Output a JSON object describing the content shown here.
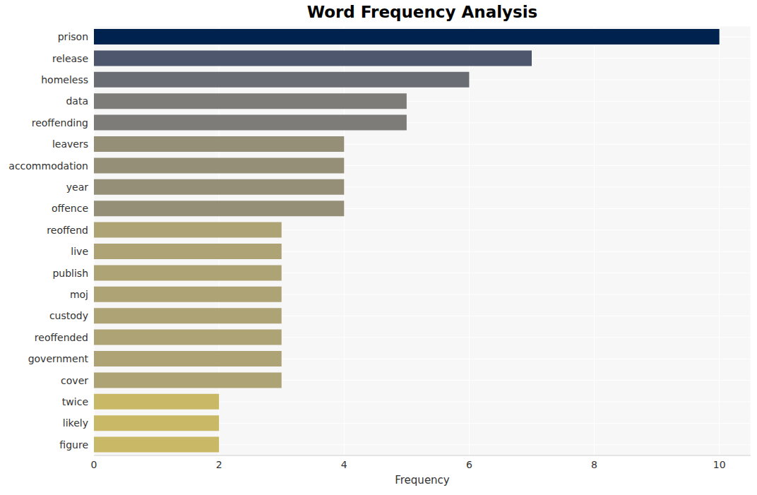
{
  "chart_data": {
    "type": "bar",
    "orientation": "horizontal",
    "title": "Word Frequency Analysis",
    "xlabel": "Frequency",
    "categories": [
      "prison",
      "release",
      "homeless",
      "data",
      "reoffending",
      "leavers",
      "accommodation",
      "year",
      "offence",
      "reoffend",
      "live",
      "publish",
      "moj",
      "custody",
      "reoffended",
      "government",
      "cover",
      "twice",
      "likely",
      "figure"
    ],
    "values": [
      10,
      7,
      6,
      5,
      5,
      4,
      4,
      4,
      4,
      3,
      3,
      3,
      3,
      3,
      3,
      3,
      3,
      2,
      2,
      2
    ],
    "colors": [
      "#00224e",
      "#4e566e",
      "#6a6d73",
      "#7d7c78",
      "#7d7c78",
      "#958f78",
      "#958f78",
      "#958f78",
      "#958f78",
      "#aea374",
      "#aea374",
      "#aea374",
      "#aea374",
      "#aea374",
      "#aea374",
      "#aea374",
      "#aea374",
      "#c9b866",
      "#c9b866",
      "#c9b866"
    ],
    "xlim": [
      0,
      10.5
    ],
    "xticks": [
      0,
      2,
      4,
      6,
      8,
      10
    ],
    "grid": true
  }
}
